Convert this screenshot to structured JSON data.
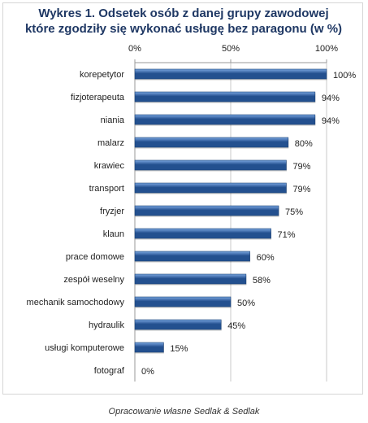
{
  "title_lines": [
    "Wykres 1. Odsetek osób z danej grupy zawodowej",
    "które zgodziły się wykonać usługę bez paragonu (w %)"
  ],
  "source": "Opracowanie własne Sedlak & Sedlak",
  "colors": {
    "bar_light": "#7aa6e0",
    "bar_dark": "#23508f",
    "grid": "#c8c8c8"
  },
  "chart_data": {
    "type": "bar",
    "orientation": "horizontal",
    "categories": [
      "korepetytor",
      "fizjoterapeuta",
      "niania",
      "malarz",
      "krawiec",
      "transport",
      "fryzjer",
      "klaun",
      "prace domowe",
      "zespół weselny",
      "mechanik samochodowy",
      "hydraulik",
      "usługi komputerowe",
      "fotograf"
    ],
    "values": [
      100,
      94,
      94,
      80,
      79,
      79,
      75,
      71,
      60,
      58,
      50,
      45,
      15,
      0
    ],
    "value_labels": [
      "100%",
      "94%",
      "94%",
      "80%",
      "79%",
      "79%",
      "75%",
      "71%",
      "60%",
      "58%",
      "50%",
      "45%",
      "15%",
      "0%"
    ],
    "xlim": [
      0,
      100
    ],
    "x_ticks": [
      0,
      50,
      100
    ],
    "x_tick_labels": [
      "0%",
      "50%",
      "100%"
    ],
    "axis_position": "top",
    "grid": true
  }
}
